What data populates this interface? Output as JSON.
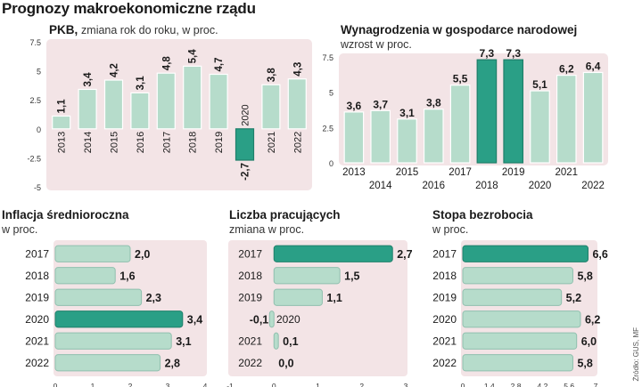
{
  "title": "Prognozy makroekonomiczne rządu",
  "source": "Źródło: GUS, MF",
  "colors": {
    "bar": "#b6dccb",
    "highlight": "#2a9f86",
    "bg": "#f3e4e6",
    "barStroke": "#8fbfae"
  },
  "chart_data": [
    {
      "id": "pkb",
      "type": "bar",
      "title": "PKB,",
      "subtitle": "zmiana rok do roku, w proc.",
      "categories": [
        "2013",
        "2014",
        "2015",
        "2016",
        "2017",
        "2018",
        "2019",
        "2020",
        "2021",
        "2022"
      ],
      "values": [
        1.1,
        3.4,
        4.2,
        3.1,
        4.8,
        5.4,
        4.7,
        -2.7,
        3.8,
        4.3
      ],
      "value_labels": [
        "1,1",
        "3,4",
        "4,2",
        "3,1",
        "4,8",
        "5,4",
        "4,7",
        "-2,7",
        "3,8",
        "4,3"
      ],
      "highlight": [
        7
      ],
      "ylim": [
        -5,
        7.5
      ],
      "yticks": [
        -5,
        -2.5,
        0,
        2.5,
        5,
        7.5
      ],
      "ytick_labels": [
        "-5",
        "-2.5",
        "0",
        "2.5",
        "5",
        "7.5"
      ]
    },
    {
      "id": "wynagrodzenia",
      "type": "bar",
      "title": "Wynagrodzenia w gospodarce narodowej",
      "subtitle": "wzrost w proc.",
      "categories": [
        "2013",
        "2014",
        "2015",
        "2016",
        "2017",
        "2018",
        "2019",
        "2020",
        "2021",
        "2022"
      ],
      "values": [
        3.6,
        3.7,
        3.1,
        3.8,
        5.5,
        7.3,
        7.3,
        5.1,
        6.2,
        6.4
      ],
      "value_labels": [
        "3,6",
        "3,7",
        "3,1",
        "3,8",
        "5,5",
        "7,3",
        "7,3",
        "5,1",
        "6,2",
        "6,4"
      ],
      "highlight": [
        5,
        6
      ],
      "ylim": [
        0,
        7.5
      ],
      "yticks": [
        0,
        2.5,
        5,
        7.5
      ],
      "ytick_labels": [
        "0",
        "2.5",
        "5",
        "7.5"
      ]
    },
    {
      "id": "inflacja",
      "type": "barh",
      "title": "Inflacja średnioroczna",
      "subtitle": "w proc.",
      "categories": [
        "2017",
        "2018",
        "2019",
        "2020",
        "2021",
        "2022"
      ],
      "values": [
        2.0,
        1.6,
        2.3,
        3.4,
        3.1,
        2.8
      ],
      "value_labels": [
        "2,0",
        "1,6",
        "2,3",
        "3,4",
        "3,1",
        "2,8"
      ],
      "highlight": [
        3
      ],
      "xlim": [
        0,
        4
      ],
      "xticks": [
        0,
        1,
        2,
        3,
        4
      ],
      "xtick_labels": [
        "0",
        "1",
        "2",
        "3",
        "4"
      ]
    },
    {
      "id": "pracujacy",
      "type": "barh",
      "title": "Liczba pracujących",
      "subtitle": "zmiana w proc.",
      "categories": [
        "2017",
        "2018",
        "2019",
        "2020",
        "2021",
        "2022"
      ],
      "values": [
        2.7,
        1.5,
        1.1,
        -0.1,
        0.1,
        0.0
      ],
      "value_labels": [
        "2,7",
        "1,5",
        "1,1",
        "-0,1",
        "0,1",
        "0,0"
      ],
      "highlight": [
        0
      ],
      "xlim": [
        -1,
        3
      ],
      "xticks": [
        -1,
        0,
        1,
        2,
        3
      ],
      "xtick_labels": [
        "-1",
        "0",
        "1",
        "2",
        "3"
      ]
    },
    {
      "id": "bezrobocie",
      "type": "barh",
      "title": "Stopa bezrobocia",
      "subtitle": "w proc.",
      "categories": [
        "2017",
        "2018",
        "2019",
        "2020",
        "2021",
        "2022"
      ],
      "values": [
        6.6,
        5.8,
        5.2,
        6.2,
        6.0,
        5.8
      ],
      "value_labels": [
        "6,6",
        "5,8",
        "5,2",
        "6,2",
        "6,0",
        "5,8"
      ],
      "highlight": [
        0
      ],
      "xlim": [
        0,
        7
      ],
      "xticks": [
        0,
        1.4,
        2.8,
        4.2,
        5.6,
        7
      ],
      "xtick_labels": [
        "0",
        "1.4",
        "2.8",
        "4.2",
        "5.6",
        "7"
      ]
    }
  ]
}
